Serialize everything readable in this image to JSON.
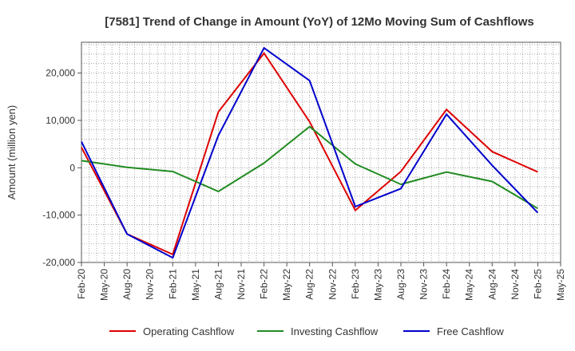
{
  "chart_data": {
    "type": "line",
    "title": "[7581]  Trend of Change in Amount (YoY) of 12Mo Moving Sum of Cashflows",
    "xlabel": "",
    "ylabel": "Amount (million yen)",
    "ylim": [
      -20000,
      26500
    ],
    "yticks": [
      -20000,
      -10000,
      0,
      10000,
      20000
    ],
    "ytick_labels": [
      "-20,000",
      "-10,000",
      "0",
      "10,000",
      "20,000"
    ],
    "xtick_labels": [
      "Feb-20",
      "May-20",
      "Aug-20",
      "Nov-20",
      "Feb-21",
      "May-21",
      "Aug-21",
      "Nov-21",
      "Feb-22",
      "May-22",
      "Aug-22",
      "Nov-22",
      "Feb-23",
      "May-23",
      "Aug-23",
      "Nov-23",
      "Feb-24",
      "May-24",
      "Aug-24",
      "Nov-24",
      "Feb-25",
      "May-25"
    ],
    "grid": true,
    "legend_position": "bottom",
    "series": [
      {
        "name": "Operating Cashflow",
        "color": "#dd0000",
        "points": [
          [
            0,
            4300
          ],
          [
            2,
            -14000
          ],
          [
            4,
            -18300
          ],
          [
            6,
            11800
          ],
          [
            8,
            24200
          ],
          [
            10,
            9700
          ],
          [
            12,
            -9000
          ],
          [
            14,
            -800
          ],
          [
            16,
            12300
          ],
          [
            18,
            3400
          ],
          [
            20,
            -900
          ]
        ]
      },
      {
        "name": "Investing Cashflow",
        "color": "#228b22",
        "points": [
          [
            0,
            1500
          ],
          [
            2,
            100
          ],
          [
            4,
            -800
          ],
          [
            6,
            -5000
          ],
          [
            8,
            1000
          ],
          [
            10,
            8700
          ],
          [
            12,
            800
          ],
          [
            14,
            -3500
          ],
          [
            16,
            -900
          ],
          [
            18,
            -2900
          ],
          [
            20,
            -8600
          ]
        ]
      },
      {
        "name": "Free Cashflow",
        "color": "#0000cc",
        "points": [
          [
            0,
            5500
          ],
          [
            2,
            -14000
          ],
          [
            4,
            -19000
          ],
          [
            6,
            6800
          ],
          [
            8,
            25300
          ],
          [
            10,
            18400
          ],
          [
            12,
            -8200
          ],
          [
            14,
            -4400
          ],
          [
            16,
            11300
          ],
          [
            18,
            500
          ],
          [
            20,
            -9500
          ]
        ]
      }
    ]
  }
}
